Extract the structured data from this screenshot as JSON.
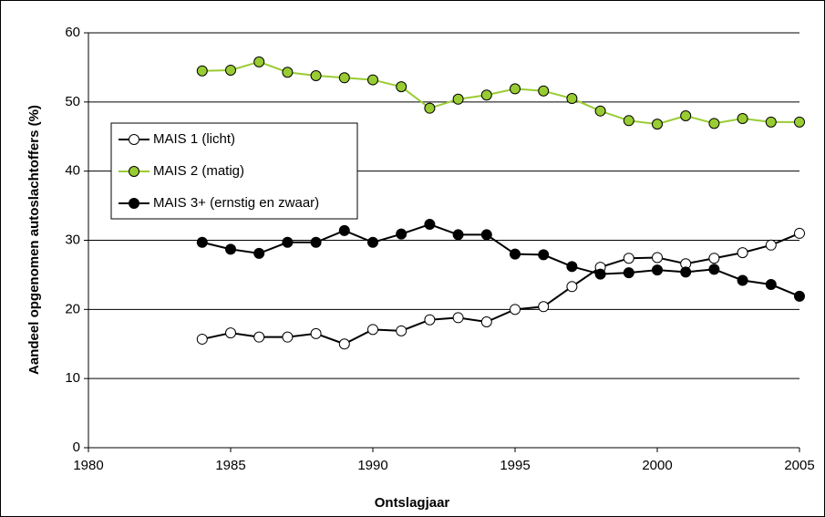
{
  "chart_data": {
    "type": "line",
    "x": [
      1984,
      1985,
      1986,
      1987,
      1988,
      1989,
      1990,
      1991,
      1992,
      1993,
      1994,
      1995,
      1996,
      1997,
      1998,
      1999,
      2000,
      2001,
      2002,
      2003,
      2004,
      2005
    ],
    "series": [
      {
        "name": "MAIS 1 (licht)",
        "color": "#ffffff",
        "values": [
          15.7,
          16.6,
          16.0,
          16.0,
          16.5,
          15.0,
          17.1,
          16.9,
          18.5,
          18.8,
          18.2,
          20.0,
          20.4,
          23.3,
          26.1,
          27.4,
          27.5,
          26.6,
          27.4,
          28.2,
          29.3,
          31.0
        ]
      },
      {
        "name": "MAIS 2 (matig)",
        "color": "#99cc33",
        "values": [
          54.5,
          54.6,
          55.8,
          54.3,
          53.8,
          53.5,
          53.2,
          52.2,
          49.1,
          50.4,
          51.0,
          51.9,
          51.6,
          50.5,
          48.7,
          47.3,
          46.8,
          48.0,
          46.9,
          47.6,
          47.1,
          47.1
        ]
      },
      {
        "name": "MAIS 3+ (ernstig en zwaar)",
        "color": "#000000",
        "values": [
          29.7,
          28.7,
          28.1,
          29.7,
          29.7,
          31.4,
          29.7,
          30.9,
          32.3,
          30.8,
          30.8,
          28.0,
          27.9,
          26.2,
          25.1,
          25.3,
          25.7,
          25.4,
          25.8,
          24.2,
          23.6,
          21.9
        ]
      }
    ],
    "x_label": "Ontslagjaar",
    "y_label": "Aandeel opgenomen autoslachtoffers (%)",
    "xlim": [
      1980,
      2005
    ],
    "xticks": [
      1980,
      1985,
      1990,
      1995,
      2000,
      2005
    ],
    "ylim": [
      0,
      60
    ],
    "yticks": [
      0,
      10,
      20,
      30,
      40,
      50,
      60
    ],
    "grid": true,
    "legend": "upper left"
  }
}
